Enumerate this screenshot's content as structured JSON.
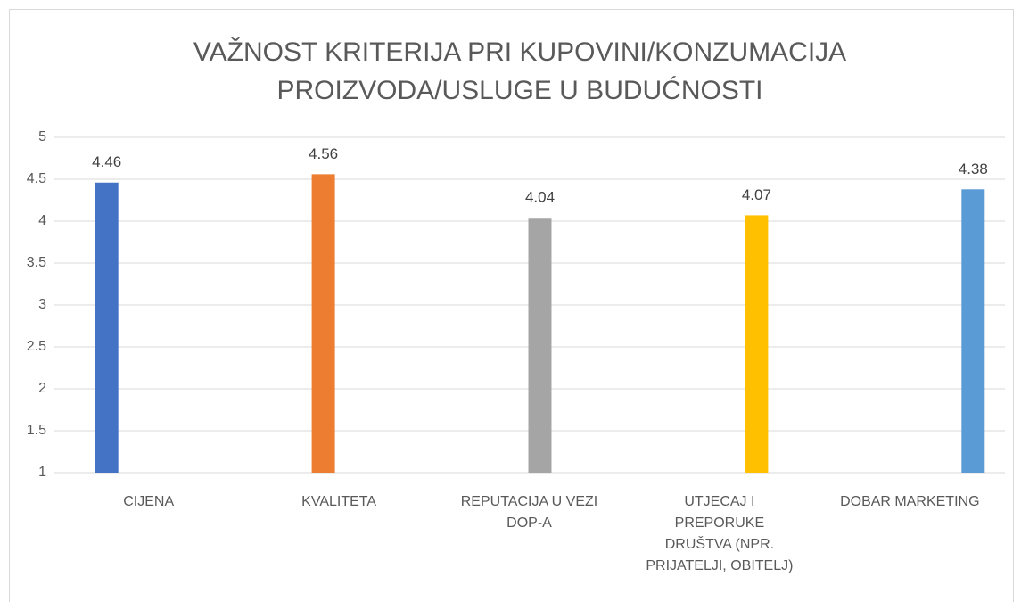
{
  "chart_data": {
    "type": "bar",
    "title": "VAŽNOST KRITERIJA PRI KUPOVINI/KONZUMACIJA PROIZVODA/USLUGE  U BUDUĆNOSTI",
    "categories": [
      "CIJENA",
      "KVALITETA",
      "REPUTACIJA U VEZI DOP-A",
      "UTJECAJ I PREPORUKE DRUŠTVA (NPR. PRIJATELJI, OBITELJ)",
      "DOBAR MARKETING"
    ],
    "values": [
      4.46,
      4.56,
      4.04,
      4.07,
      4.38
    ],
    "colors": [
      "#4472c4",
      "#ed7d31",
      "#a5a5a5",
      "#ffc000",
      "#5b9bd5"
    ],
    "ylim": [
      1,
      5
    ],
    "yticks": [
      1,
      1.5,
      2,
      2.5,
      3,
      3.5,
      4,
      4.5,
      5
    ],
    "grid": true
  }
}
